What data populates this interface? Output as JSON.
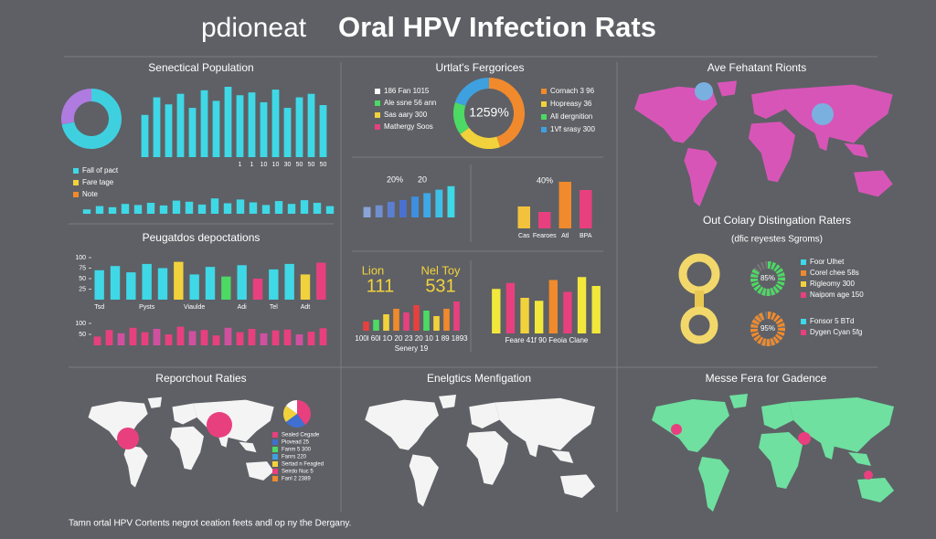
{
  "header": {
    "title_light": "pdioneat",
    "title_bold": "Oral HPV Infection Rats"
  },
  "chart_data": [
    {
      "type": "donut",
      "title": "Senectical Population",
      "values": [
        72,
        28
      ],
      "colors": [
        "#3fd0e0",
        "#b07be0"
      ],
      "legend": [
        {
          "name": "Fall of pact",
          "color": "#3fd8e6"
        },
        {
          "name": "Fare tage",
          "color": "#f2d23c"
        },
        {
          "name": "Note",
          "color": "#f08a2c"
        }
      ]
    },
    {
      "type": "bar",
      "values": [
        60,
        85,
        75,
        90,
        70,
        95,
        80,
        100,
        88,
        92,
        78,
        96,
        70,
        85,
        90,
        74
      ],
      "color": "#3fd8e6",
      "ylim": [
        0,
        100
      ],
      "categories": [
        null,
        null,
        null,
        null,
        null,
        null,
        null,
        null,
        "1",
        "1",
        "10",
        "10",
        "30",
        "50",
        "50",
        "50"
      ]
    },
    {
      "type": "bar",
      "values": [
        20,
        35,
        30,
        45,
        40,
        50,
        38,
        60,
        55,
        42,
        70,
        48,
        65,
        52,
        40,
        58,
        45,
        62,
        50,
        35
      ],
      "color": "#3fd8e6",
      "ylim": [
        0,
        100
      ]
    },
    {
      "type": "bar",
      "title": "Peugatdos depoctations",
      "values": [
        70,
        80,
        65,
        85,
        75,
        90,
        60,
        78,
        55,
        82,
        50,
        72,
        85,
        60,
        88
      ],
      "colors": [
        "#3fd8e6",
        "#3fd8e6",
        "#3fd8e6",
        "#3fd8e6",
        "#3fd8e6",
        "#f2d23c",
        "#3fd8e6",
        "#3fd8e6",
        "#4cd964",
        "#3fd8e6",
        "#e8407f",
        "#3fd8e6",
        "#3fd8e6",
        "#f2d23c",
        "#e8407f"
      ],
      "ylim": [
        0,
        100
      ],
      "yticks": [
        25,
        50,
        75,
        100
      ],
      "categories": [
        "Tsd",
        null,
        null,
        "Pysts",
        null,
        null,
        "Viaulde",
        null,
        null,
        "Adi",
        null,
        "Tel",
        null,
        "Adt",
        null
      ]
    },
    {
      "type": "bar",
      "values": [
        40,
        70,
        55,
        80,
        60,
        75,
        50,
        85,
        65,
        70,
        45,
        80,
        60,
        75,
        55,
        68,
        72,
        50,
        62,
        78
      ],
      "colors": [
        "#e8407f",
        "#e8407f",
        "#d050a0"
      ],
      "ylim": [
        0,
        100
      ],
      "yticks": [
        50,
        100
      ]
    },
    {
      "type": "donut",
      "title": "Urtlat's Fergorices",
      "values": [
        45,
        20,
        15,
        20
      ],
      "colors": [
        "#f08a2c",
        "#f2d23c",
        "#4cd964",
        "#3fa0e0"
      ],
      "center_label": "1259%",
      "legend": [
        {
          "name": "186 Fan 1015",
          "color": "#ffffff"
        },
        {
          "name": "Ale ssne 56 ann",
          "color": "#4cd964"
        },
        {
          "name": "Sas aary 300",
          "color": "#f2d23c"
        },
        {
          "name": "Mathergy Soos",
          "color": "#e8407f"
        }
      ],
      "legend_right": [
        {
          "name": "Cornach 3 96",
          "color": "#f08a2c"
        },
        {
          "name": "Hopreasy 36",
          "color": "#f2d23c"
        },
        {
          "name": "All dergnition",
          "color": "#4cd964"
        },
        {
          "name": "1Vf srasy 300",
          "color": "#3fa0e0"
        }
      ]
    },
    {
      "type": "bar",
      "values": [
        30,
        35,
        45,
        50,
        60,
        70,
        80,
        90
      ],
      "colors": [
        "#8aa4d8",
        "#6f8fd0",
        "#5a7fd0",
        "#4a70d0",
        "#3f8fe0",
        "#3fa8e6",
        "#3fc0e6",
        "#3fd8e6"
      ],
      "ylim": [
        0,
        100
      ],
      "annotations": [
        "20%",
        "20"
      ]
    },
    {
      "type": "bar",
      "values": [
        40,
        30,
        85,
        70
      ],
      "colors": [
        "#f2c23c",
        "#e8407f",
        "#f08a2c",
        "#e8407f"
      ],
      "ylim": [
        0,
        100
      ],
      "categories": [
        "Cas",
        "Fearoes",
        "Atl",
        "BPA"
      ],
      "annotations": [
        "40%"
      ]
    },
    {
      "type": "bar",
      "values": [
        25,
        30,
        45,
        60,
        50,
        70,
        55,
        40,
        60,
        80
      ],
      "colors": [
        "#e8403f",
        "#4cd964",
        "#f2d23c",
        "#f08a2c",
        "#e8407f"
      ],
      "ylim": [
        0,
        100
      ],
      "annotations": [
        "Lion",
        "111",
        "Nel Toy",
        "531"
      ],
      "xlabel": "100l 60l 1O 20 23 20 10 1 89 1893",
      "x_sublabel": "Senery 19"
    },
    {
      "type": "bar",
      "values": [
        75,
        85,
        60,
        55,
        90,
        70,
        95,
        80
      ],
      "colors": [
        "#f2e83c",
        "#e8407f",
        "#f2d23c",
        "#f2e83c",
        "#f08a2c",
        "#e8407f",
        "#f2e83c",
        "#f2e83c"
      ],
      "ylim": [
        0,
        100
      ],
      "xlabel": "Feare 41f 90 Feoia Clane"
    },
    {
      "type": "ring",
      "title": "Out Colary Distingation Raters",
      "subtitle": "(dfic reyestes Sgroms)",
      "values": [
        85,
        95
      ],
      "value_labels": [
        "85%",
        "95%"
      ],
      "colors": [
        "#4cd964",
        "#f08a2c"
      ],
      "legend": [
        {
          "name": "Foor Ulhet",
          "color": "#3fd8e6"
        },
        {
          "name": "Corel chee 58s",
          "color": "#f08a2c"
        },
        {
          "name": "Rigleomy 300",
          "color": "#f2d23c"
        },
        {
          "name": "Naipom age 150",
          "color": "#e8407f"
        }
      ],
      "legend_right": [
        {
          "name": "Fonsor 5 BTd",
          "color": "#3fd8e6"
        },
        {
          "name": "Dygen Cyan 5fg",
          "color": "#e8407f"
        }
      ]
    },
    {
      "type": "pie",
      "values": [
        40,
        25,
        20,
        15
      ],
      "colors": [
        "#e8407f",
        "#3f6fd0",
        "#f2d23c",
        "#ffffff"
      ],
      "legend": [
        {
          "name": "Sealed Cegade",
          "color": "#e8407f"
        },
        {
          "name": "Piovead 25",
          "color": "#3f6fd0"
        },
        {
          "name": "Fanm 5 300",
          "color": "#4cd964"
        },
        {
          "name": "Fanrs 220",
          "color": "#3fa0e0"
        },
        {
          "name": "Sertad n Feagled",
          "color": "#f2d23c"
        },
        {
          "name": "Seirdo Nuc 5",
          "color": "#e8407f"
        },
        {
          "name": "Fanl 2 2389",
          "color": "#f08a2c"
        }
      ]
    }
  ],
  "maps": [
    {
      "title": "Ave Fehatant Rionts"
    },
    {
      "title": "Reporchout Raties"
    },
    {
      "title": "Enelgtics Menfigation"
    },
    {
      "title": "Messe Fera for Gadence"
    }
  ],
  "footer": "Tamn ortal HPV Cortents negrot ceation feets andl op ny the Dergany."
}
